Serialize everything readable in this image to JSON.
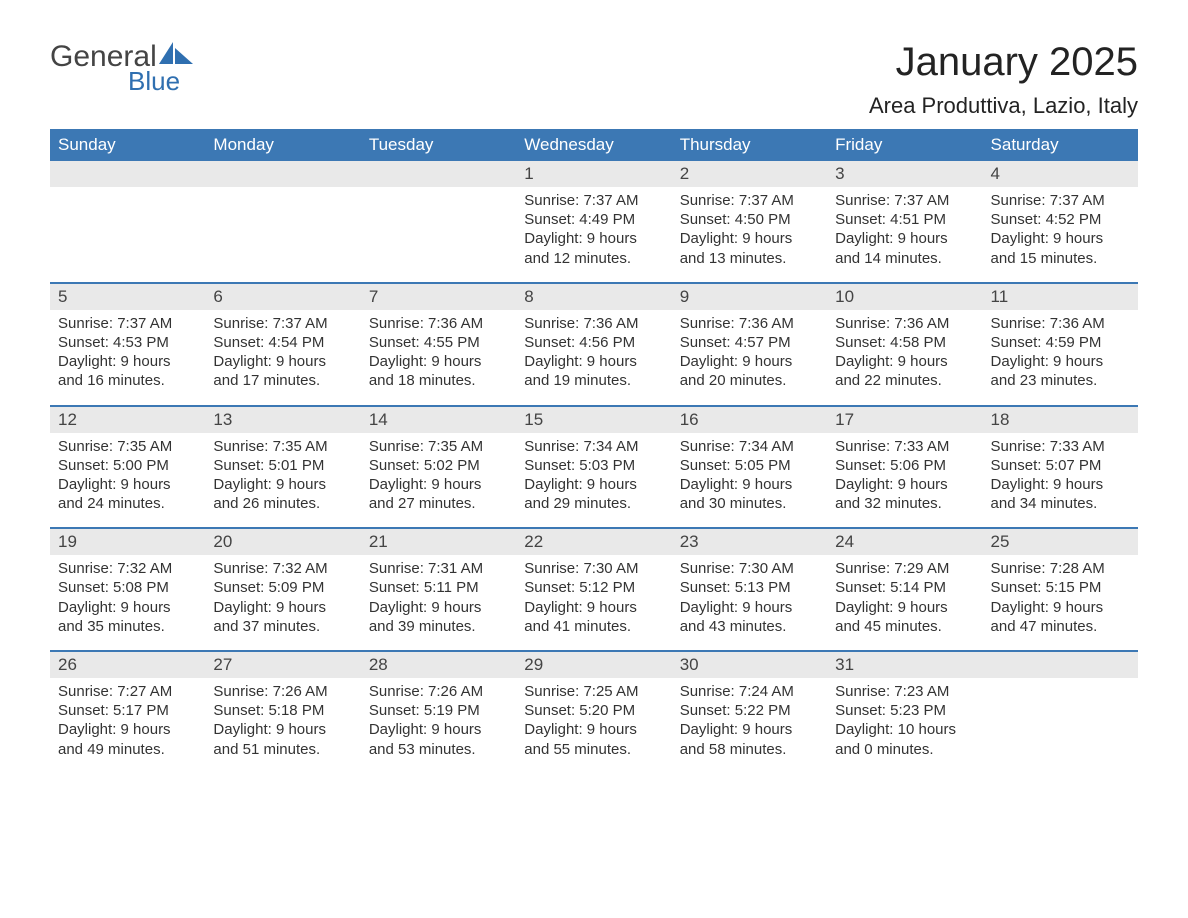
{
  "brand": {
    "general": "General",
    "blue": "Blue"
  },
  "title": {
    "month": "January 2025",
    "location": "Area Produttiva, Lazio, Italy"
  },
  "colors": {
    "header_bg": "#3c78b4",
    "header_text": "#ffffff",
    "daynum_bg": "#e9e9e9",
    "daynum_text": "#444444",
    "body_text": "#333333",
    "logo_gray": "#444444",
    "logo_blue": "#2f6fb0",
    "page_bg": "#ffffff",
    "week_border": "#3c78b4"
  },
  "typography": {
    "month_fontsize": 40,
    "location_fontsize": 22,
    "header_fontsize": 17,
    "daynum_fontsize": 17,
    "body_fontsize": 15
  },
  "layout": {
    "columns": 7,
    "rows": 5
  },
  "weekdays": [
    "Sunday",
    "Monday",
    "Tuesday",
    "Wednesday",
    "Thursday",
    "Friday",
    "Saturday"
  ],
  "weeks": [
    [
      {
        "blank": true
      },
      {
        "blank": true
      },
      {
        "blank": true
      },
      {
        "day": "1",
        "sunrise": "Sunrise: 7:37 AM",
        "sunset": "Sunset: 4:49 PM",
        "daylight1": "Daylight: 9 hours",
        "daylight2": "and 12 minutes."
      },
      {
        "day": "2",
        "sunrise": "Sunrise: 7:37 AM",
        "sunset": "Sunset: 4:50 PM",
        "daylight1": "Daylight: 9 hours",
        "daylight2": "and 13 minutes."
      },
      {
        "day": "3",
        "sunrise": "Sunrise: 7:37 AM",
        "sunset": "Sunset: 4:51 PM",
        "daylight1": "Daylight: 9 hours",
        "daylight2": "and 14 minutes."
      },
      {
        "day": "4",
        "sunrise": "Sunrise: 7:37 AM",
        "sunset": "Sunset: 4:52 PM",
        "daylight1": "Daylight: 9 hours",
        "daylight2": "and 15 minutes."
      }
    ],
    [
      {
        "day": "5",
        "sunrise": "Sunrise: 7:37 AM",
        "sunset": "Sunset: 4:53 PM",
        "daylight1": "Daylight: 9 hours",
        "daylight2": "and 16 minutes."
      },
      {
        "day": "6",
        "sunrise": "Sunrise: 7:37 AM",
        "sunset": "Sunset: 4:54 PM",
        "daylight1": "Daylight: 9 hours",
        "daylight2": "and 17 minutes."
      },
      {
        "day": "7",
        "sunrise": "Sunrise: 7:36 AM",
        "sunset": "Sunset: 4:55 PM",
        "daylight1": "Daylight: 9 hours",
        "daylight2": "and 18 minutes."
      },
      {
        "day": "8",
        "sunrise": "Sunrise: 7:36 AM",
        "sunset": "Sunset: 4:56 PM",
        "daylight1": "Daylight: 9 hours",
        "daylight2": "and 19 minutes."
      },
      {
        "day": "9",
        "sunrise": "Sunrise: 7:36 AM",
        "sunset": "Sunset: 4:57 PM",
        "daylight1": "Daylight: 9 hours",
        "daylight2": "and 20 minutes."
      },
      {
        "day": "10",
        "sunrise": "Sunrise: 7:36 AM",
        "sunset": "Sunset: 4:58 PM",
        "daylight1": "Daylight: 9 hours",
        "daylight2": "and 22 minutes."
      },
      {
        "day": "11",
        "sunrise": "Sunrise: 7:36 AM",
        "sunset": "Sunset: 4:59 PM",
        "daylight1": "Daylight: 9 hours",
        "daylight2": "and 23 minutes."
      }
    ],
    [
      {
        "day": "12",
        "sunrise": "Sunrise: 7:35 AM",
        "sunset": "Sunset: 5:00 PM",
        "daylight1": "Daylight: 9 hours",
        "daylight2": "and 24 minutes."
      },
      {
        "day": "13",
        "sunrise": "Sunrise: 7:35 AM",
        "sunset": "Sunset: 5:01 PM",
        "daylight1": "Daylight: 9 hours",
        "daylight2": "and 26 minutes."
      },
      {
        "day": "14",
        "sunrise": "Sunrise: 7:35 AM",
        "sunset": "Sunset: 5:02 PM",
        "daylight1": "Daylight: 9 hours",
        "daylight2": "and 27 minutes."
      },
      {
        "day": "15",
        "sunrise": "Sunrise: 7:34 AM",
        "sunset": "Sunset: 5:03 PM",
        "daylight1": "Daylight: 9 hours",
        "daylight2": "and 29 minutes."
      },
      {
        "day": "16",
        "sunrise": "Sunrise: 7:34 AM",
        "sunset": "Sunset: 5:05 PM",
        "daylight1": "Daylight: 9 hours",
        "daylight2": "and 30 minutes."
      },
      {
        "day": "17",
        "sunrise": "Sunrise: 7:33 AM",
        "sunset": "Sunset: 5:06 PM",
        "daylight1": "Daylight: 9 hours",
        "daylight2": "and 32 minutes."
      },
      {
        "day": "18",
        "sunrise": "Sunrise: 7:33 AM",
        "sunset": "Sunset: 5:07 PM",
        "daylight1": "Daylight: 9 hours",
        "daylight2": "and 34 minutes."
      }
    ],
    [
      {
        "day": "19",
        "sunrise": "Sunrise: 7:32 AM",
        "sunset": "Sunset: 5:08 PM",
        "daylight1": "Daylight: 9 hours",
        "daylight2": "and 35 minutes."
      },
      {
        "day": "20",
        "sunrise": "Sunrise: 7:32 AM",
        "sunset": "Sunset: 5:09 PM",
        "daylight1": "Daylight: 9 hours",
        "daylight2": "and 37 minutes."
      },
      {
        "day": "21",
        "sunrise": "Sunrise: 7:31 AM",
        "sunset": "Sunset: 5:11 PM",
        "daylight1": "Daylight: 9 hours",
        "daylight2": "and 39 minutes."
      },
      {
        "day": "22",
        "sunrise": "Sunrise: 7:30 AM",
        "sunset": "Sunset: 5:12 PM",
        "daylight1": "Daylight: 9 hours",
        "daylight2": "and 41 minutes."
      },
      {
        "day": "23",
        "sunrise": "Sunrise: 7:30 AM",
        "sunset": "Sunset: 5:13 PM",
        "daylight1": "Daylight: 9 hours",
        "daylight2": "and 43 minutes."
      },
      {
        "day": "24",
        "sunrise": "Sunrise: 7:29 AM",
        "sunset": "Sunset: 5:14 PM",
        "daylight1": "Daylight: 9 hours",
        "daylight2": "and 45 minutes."
      },
      {
        "day": "25",
        "sunrise": "Sunrise: 7:28 AM",
        "sunset": "Sunset: 5:15 PM",
        "daylight1": "Daylight: 9 hours",
        "daylight2": "and 47 minutes."
      }
    ],
    [
      {
        "day": "26",
        "sunrise": "Sunrise: 7:27 AM",
        "sunset": "Sunset: 5:17 PM",
        "daylight1": "Daylight: 9 hours",
        "daylight2": "and 49 minutes."
      },
      {
        "day": "27",
        "sunrise": "Sunrise: 7:26 AM",
        "sunset": "Sunset: 5:18 PM",
        "daylight1": "Daylight: 9 hours",
        "daylight2": "and 51 minutes."
      },
      {
        "day": "28",
        "sunrise": "Sunrise: 7:26 AM",
        "sunset": "Sunset: 5:19 PM",
        "daylight1": "Daylight: 9 hours",
        "daylight2": "and 53 minutes."
      },
      {
        "day": "29",
        "sunrise": "Sunrise: 7:25 AM",
        "sunset": "Sunset: 5:20 PM",
        "daylight1": "Daylight: 9 hours",
        "daylight2": "and 55 minutes."
      },
      {
        "day": "30",
        "sunrise": "Sunrise: 7:24 AM",
        "sunset": "Sunset: 5:22 PM",
        "daylight1": "Daylight: 9 hours",
        "daylight2": "and 58 minutes."
      },
      {
        "day": "31",
        "sunrise": "Sunrise: 7:23 AM",
        "sunset": "Sunset: 5:23 PM",
        "daylight1": "Daylight: 10 hours",
        "daylight2": "and 0 minutes."
      },
      {
        "blank": true
      }
    ]
  ]
}
